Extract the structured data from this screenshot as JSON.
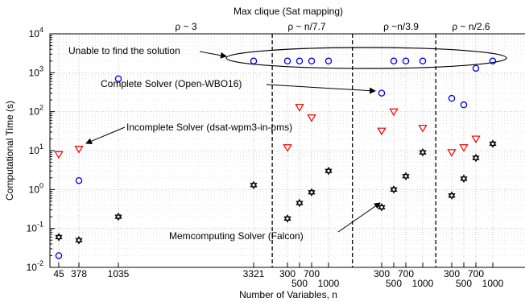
{
  "chart_data": {
    "type": "scatter",
    "title": "Max clique (Sat mapping)",
    "xlabel": "Number of Variables, n",
    "ylabel": "Computational Time (s)",
    "y_scale": "log",
    "ylim": [
      0.01,
      10000
    ],
    "y_ticks": [
      {
        "value": 0.01,
        "base": "10",
        "exp": "-2"
      },
      {
        "value": 0.1,
        "base": "10",
        "exp": "-1"
      },
      {
        "value": 1,
        "base": "10",
        "exp": "0"
      },
      {
        "value": 10,
        "base": "10",
        "exp": "1"
      },
      {
        "value": 100,
        "base": "10",
        "exp": "2"
      },
      {
        "value": 1000,
        "base": "10",
        "exp": "3"
      },
      {
        "value": 10000,
        "base": "10",
        "exp": "4"
      }
    ],
    "x_ticks": [
      {
        "label": "45",
        "slot": 0,
        "row": 0
      },
      {
        "label": "378",
        "slot": 1,
        "row": 0
      },
      {
        "label": "1035",
        "slot": 2,
        "row": 0
      },
      {
        "label": "3321",
        "slot": 3,
        "row": 0
      },
      {
        "label": "300",
        "slot": 4,
        "row": 0
      },
      {
        "label": "500",
        "slot": 5,
        "row": 1
      },
      {
        "label": "700",
        "slot": 6,
        "row": 0
      },
      {
        "label": "1000",
        "slot": 7,
        "row": 1
      },
      {
        "label": "300",
        "slot": 8,
        "row": 0
      },
      {
        "label": "500",
        "slot": 9,
        "row": 1
      },
      {
        "label": "700",
        "slot": 10,
        "row": 0
      },
      {
        "label": "1000",
        "slot": 11,
        "row": 1
      },
      {
        "label": "300",
        "slot": 12,
        "row": 0
      },
      {
        "label": "500",
        "slot": 13,
        "row": 1
      },
      {
        "label": "700",
        "slot": 14,
        "row": 0
      },
      {
        "label": "1000",
        "slot": 15,
        "row": 1
      }
    ],
    "group_labels": [
      {
        "text": "ρ ~ 3",
        "slot": 2.5
      },
      {
        "text": "ρ ~ n/7.7",
        "slot": 5.6
      },
      {
        "text": "ρ ~n/3.9",
        "slot": 9.6
      },
      {
        "text": "ρ ~ n/2.6",
        "slot": 13.6
      }
    ],
    "separators": [
      3.55,
      7.45,
      11.45
    ],
    "series": [
      {
        "name": "Complete Solver (Open-WBO16)",
        "marker": "circle",
        "color": "#0000ee",
        "points": [
          {
            "slot": 0,
            "y": 0.02
          },
          {
            "slot": 1,
            "y": 1.7
          },
          {
            "slot": 2,
            "y": 700
          },
          {
            "slot": 3,
            "y": 2000
          },
          {
            "slot": 4,
            "y": 2000
          },
          {
            "slot": 5,
            "y": 2000
          },
          {
            "slot": 6,
            "y": 2000
          },
          {
            "slot": 7,
            "y": 2000
          },
          {
            "slot": 8,
            "y": 300
          },
          {
            "slot": 9,
            "y": 2000
          },
          {
            "slot": 10,
            "y": 2000
          },
          {
            "slot": 11,
            "y": 2000
          },
          {
            "slot": 12,
            "y": 220
          },
          {
            "slot": 13,
            "y": 150
          },
          {
            "slot": 14,
            "y": 1300
          },
          {
            "slot": 15,
            "y": 2000
          }
        ]
      },
      {
        "name": "Incomplete Solver (dsat-wpm3-in-pms)",
        "marker": "triangle-down",
        "color": "#ee0000",
        "points": [
          {
            "slot": 0,
            "y": 8
          },
          {
            "slot": 1,
            "y": 11
          },
          {
            "slot": 4,
            "y": 12
          },
          {
            "slot": 5,
            "y": 130
          },
          {
            "slot": 6,
            "y": 70
          },
          {
            "slot": 8,
            "y": 32
          },
          {
            "slot": 9,
            "y": 100
          },
          {
            "slot": 11,
            "y": 38
          },
          {
            "slot": 12,
            "y": 9
          },
          {
            "slot": 13,
            "y": 12
          },
          {
            "slot": 14,
            "y": 20
          }
        ]
      },
      {
        "name": "Memcomputing Solver (Falcon)",
        "marker": "hexagram",
        "color": "#000000",
        "points": [
          {
            "slot": 0,
            "y": 0.06
          },
          {
            "slot": 1,
            "y": 0.05
          },
          {
            "slot": 2,
            "y": 0.2
          },
          {
            "slot": 3,
            "y": 1.3
          },
          {
            "slot": 4,
            "y": 0.18
          },
          {
            "slot": 5,
            "y": 0.45
          },
          {
            "slot": 6,
            "y": 0.85
          },
          {
            "slot": 7,
            "y": 3
          },
          {
            "slot": 8,
            "y": 0.35
          },
          {
            "slot": 9,
            "y": 1
          },
          {
            "slot": 10,
            "y": 2.2
          },
          {
            "slot": 11,
            "y": 9
          },
          {
            "slot": 12,
            "y": 0.7
          },
          {
            "slot": 13,
            "y": 1.9
          },
          {
            "slot": 14,
            "y": 6.5
          },
          {
            "slot": 15,
            "y": 15
          }
        ]
      }
    ],
    "annotations": [
      {
        "id": "unable",
        "text": "Unable to find the solution"
      },
      {
        "id": "complete",
        "text": "Complete Solver (Open-WBO16)"
      },
      {
        "id": "incomplete",
        "text": "Incomplete Solver (dsat-wpm3-in-pms)"
      },
      {
        "id": "memcomputing",
        "text": "Memcomputing Solver (Falcon)"
      }
    ]
  }
}
